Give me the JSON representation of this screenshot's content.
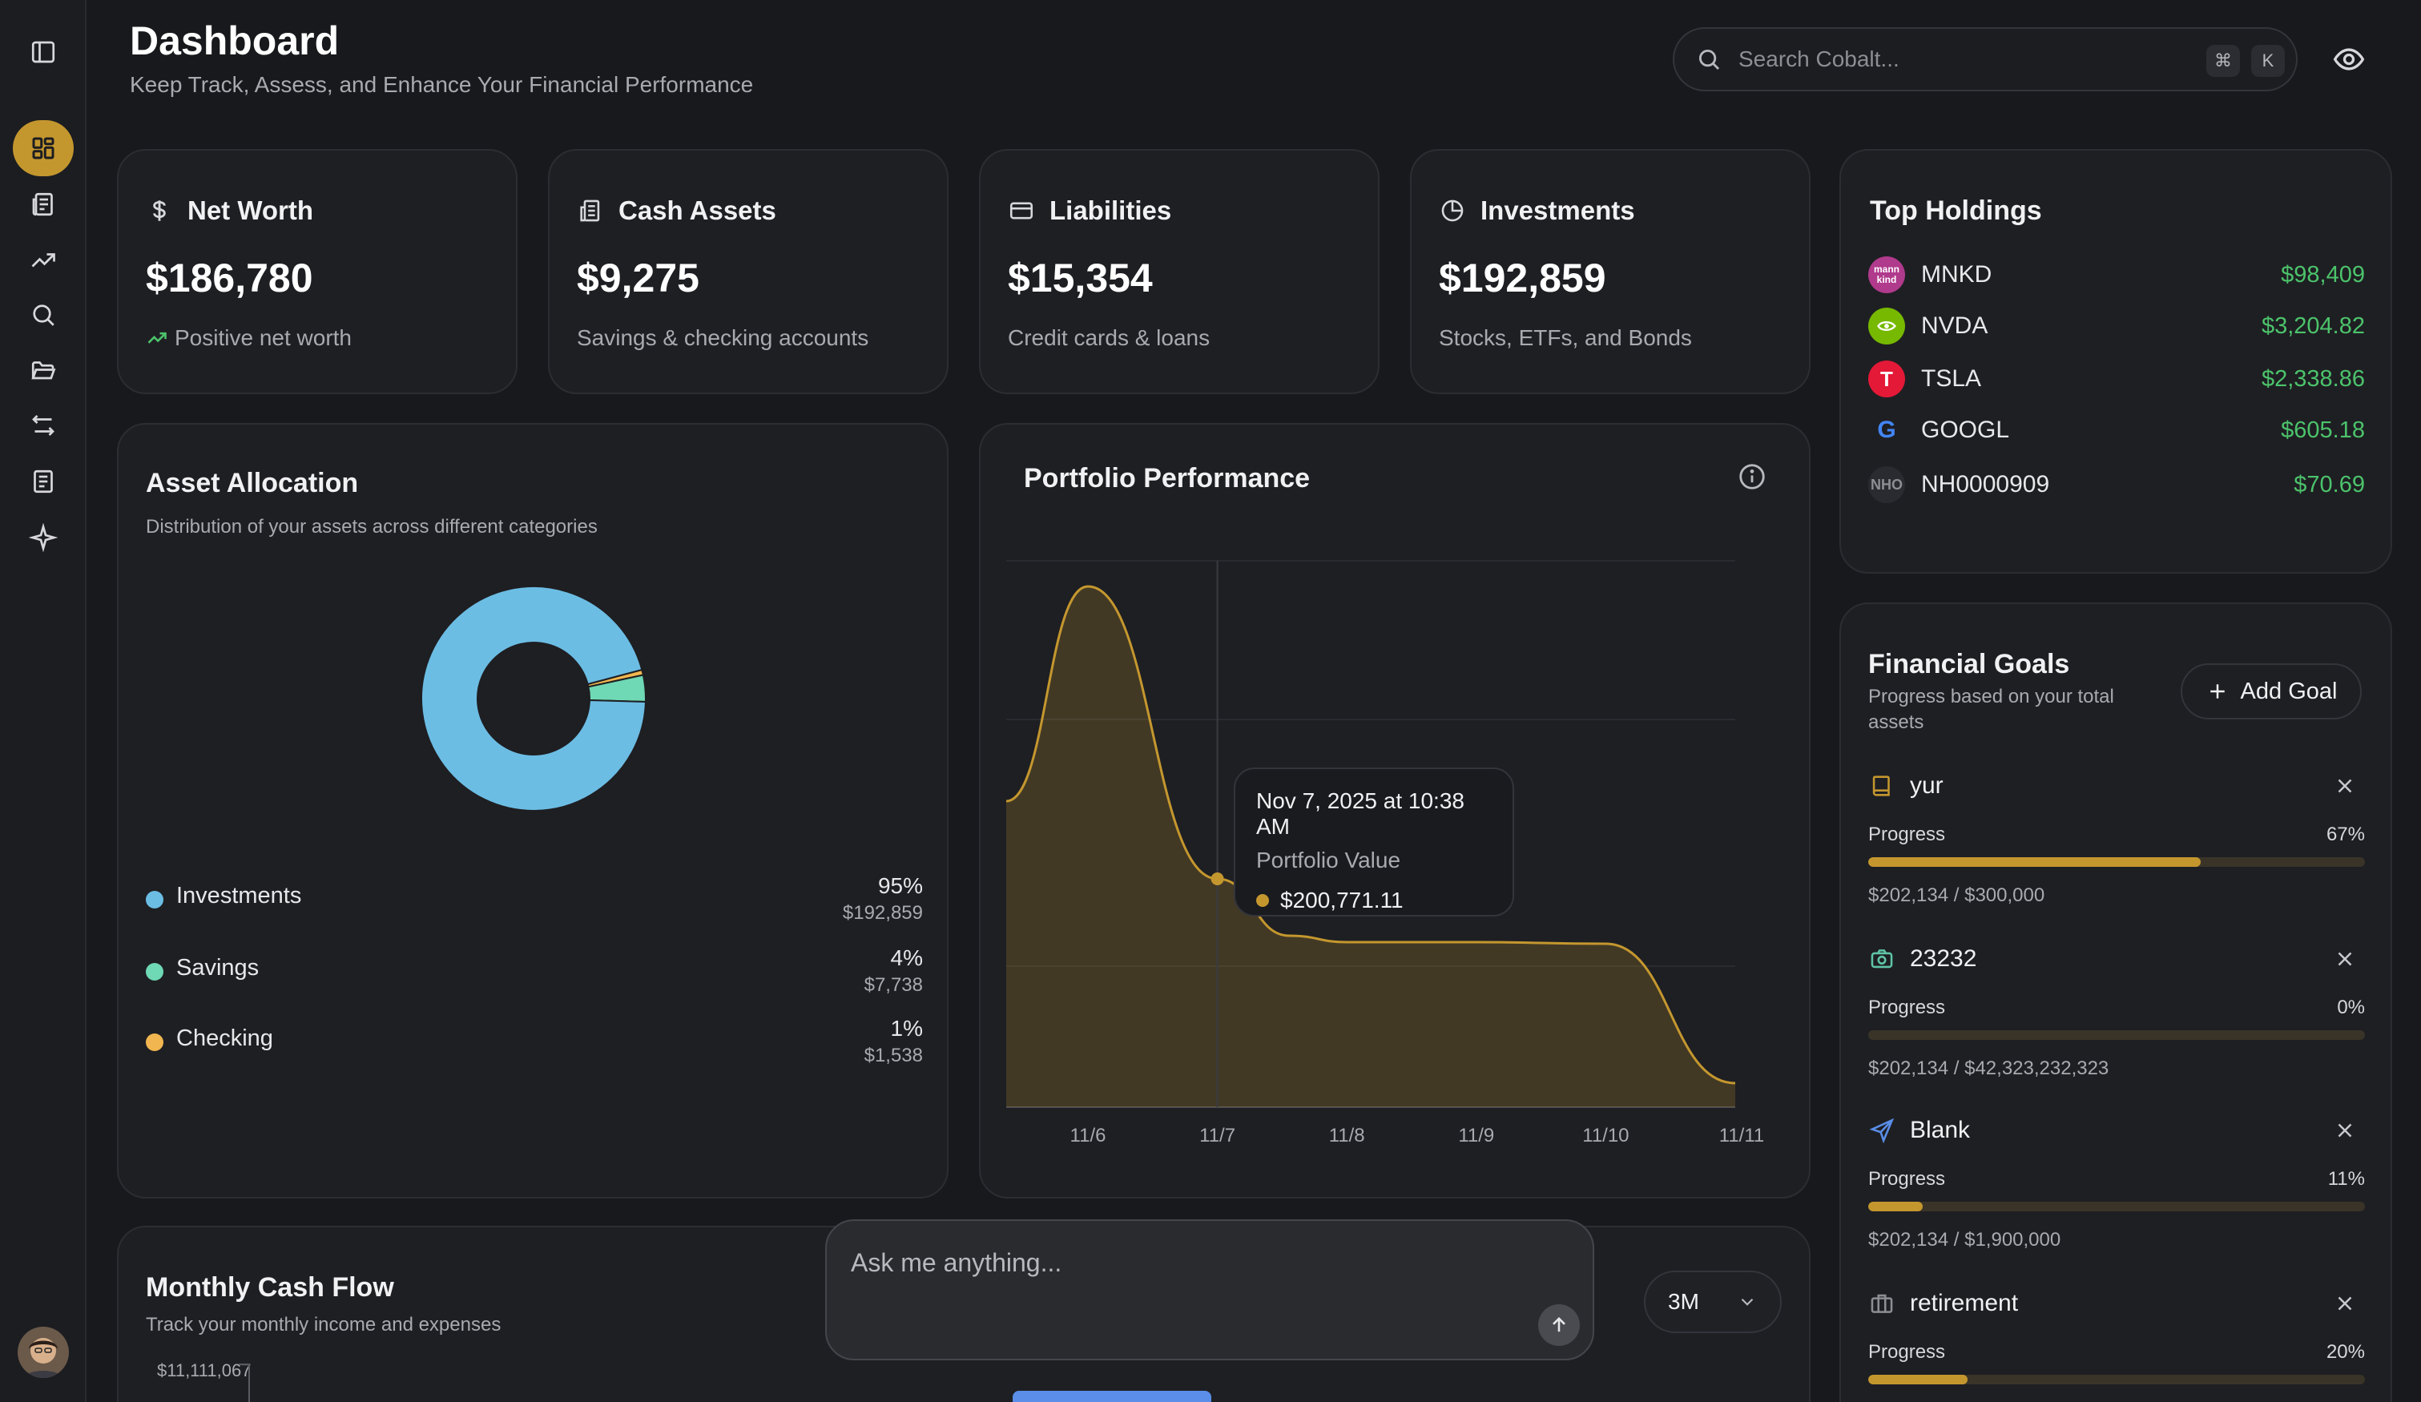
{
  "header": {
    "title": "Dashboard",
    "subtitle": "Keep Track, Assess, and Enhance Your Financial Performance",
    "search_placeholder": "Search Cobalt...",
    "shortcut_cmd": "⌘",
    "shortcut_key": "K"
  },
  "sidebar": {
    "items": [
      {
        "icon": "layout-grid-icon",
        "active": true
      },
      {
        "icon": "receipt-icon",
        "active": false
      },
      {
        "icon": "trending-up-icon",
        "active": false
      },
      {
        "icon": "search-icon",
        "active": false
      },
      {
        "icon": "folder-icon",
        "active": false
      },
      {
        "icon": "transfer-icon",
        "active": false
      },
      {
        "icon": "document-icon",
        "active": false
      },
      {
        "icon": "sparkle-icon",
        "active": false
      }
    ]
  },
  "stats": {
    "net_worth": {
      "label": "Net Worth",
      "value": "$186,780",
      "sub": "Positive net worth"
    },
    "cash_assets": {
      "label": "Cash Assets",
      "value": "$9,275",
      "sub": "Savings & checking accounts"
    },
    "liabilities": {
      "label": "Liabilities",
      "value": "$15,354",
      "sub": "Credit cards & loans"
    },
    "investments": {
      "label": "Investments",
      "value": "$192,859",
      "sub": "Stocks, ETFs, and Bonds"
    }
  },
  "top_holdings": {
    "title": "Top Holdings",
    "items": [
      {
        "symbol": "MNKD",
        "value": "$98,409",
        "logo_text": "mann kind",
        "logo_color": "#b03a8c"
      },
      {
        "symbol": "NVDA",
        "value": "$3,204.82",
        "logo_text": "",
        "logo_color": "#76b900"
      },
      {
        "symbol": "TSLA",
        "value": "$2,338.86",
        "logo_text": "T",
        "logo_color": "#e31937"
      },
      {
        "symbol": "GOOGL",
        "value": "$605.18",
        "logo_text": "G",
        "logo_color": "#ffffff"
      },
      {
        "symbol": "NH0000909",
        "value": "$70.69",
        "logo_text": "NHO",
        "logo_color": "#2a2b30"
      }
    ]
  },
  "asset_allocation": {
    "title": "Asset Allocation",
    "subtitle": "Distribution of your assets across different categories",
    "items": [
      {
        "label": "Investments",
        "pct": "95%",
        "amount": "$192,859",
        "color": "#6cbde4"
      },
      {
        "label": "Savings",
        "pct": "4%",
        "amount": "$7,738",
        "color": "#6fd8b4"
      },
      {
        "label": "Checking",
        "pct": "1%",
        "amount": "$1,538",
        "color": "#f1b64f"
      }
    ]
  },
  "portfolio": {
    "title": "Portfolio Performance",
    "tooltip": {
      "date": "Nov 7, 2025 at 10:38 AM",
      "label": "Portfolio Value",
      "value": "$200,771.11"
    }
  },
  "chart_data": {
    "type": "area",
    "x": [
      "11/6",
      "11/7",
      "11/8",
      "11/9",
      "11/10",
      "11/11"
    ],
    "series": [
      {
        "values": [
          209500,
          200771,
          198500,
          198500,
          198500,
          193000
        ]
      }
    ],
    "color": "#c4972e",
    "grid": true,
    "legend": "none"
  },
  "financial_goals": {
    "title": "Financial Goals",
    "subtitle": "Progress based on your total assets",
    "add_label": "Add Goal",
    "progress_label": "Progress",
    "goals": [
      {
        "name": "yur",
        "icon": "book-icon",
        "icon_color": "#c4972e",
        "pct": "67%",
        "progress": 67,
        "amount": "$202,134 / $300,000"
      },
      {
        "name": "23232",
        "icon": "camera-icon",
        "icon_color": "#5fc4a6",
        "pct": "0%",
        "progress": 0,
        "amount": "$202,134 / $42,323,232,323"
      },
      {
        "name": "Blank",
        "icon": "plane-icon",
        "icon_color": "#5a8ee8",
        "pct": "11%",
        "progress": 11,
        "amount": "$202,134 / $1,900,000"
      },
      {
        "name": "retirement",
        "icon": "briefcase-icon",
        "icon_color": "#8d8e94",
        "pct": "20%",
        "progress": 20,
        "amount": ""
      }
    ]
  },
  "cash_flow": {
    "title": "Monthly Cash Flow",
    "subtitle": "Track your monthly income and expenses",
    "y_max_label": "$11,111,067",
    "range": "3M"
  },
  "chat": {
    "placeholder": "Ask me anything..."
  }
}
